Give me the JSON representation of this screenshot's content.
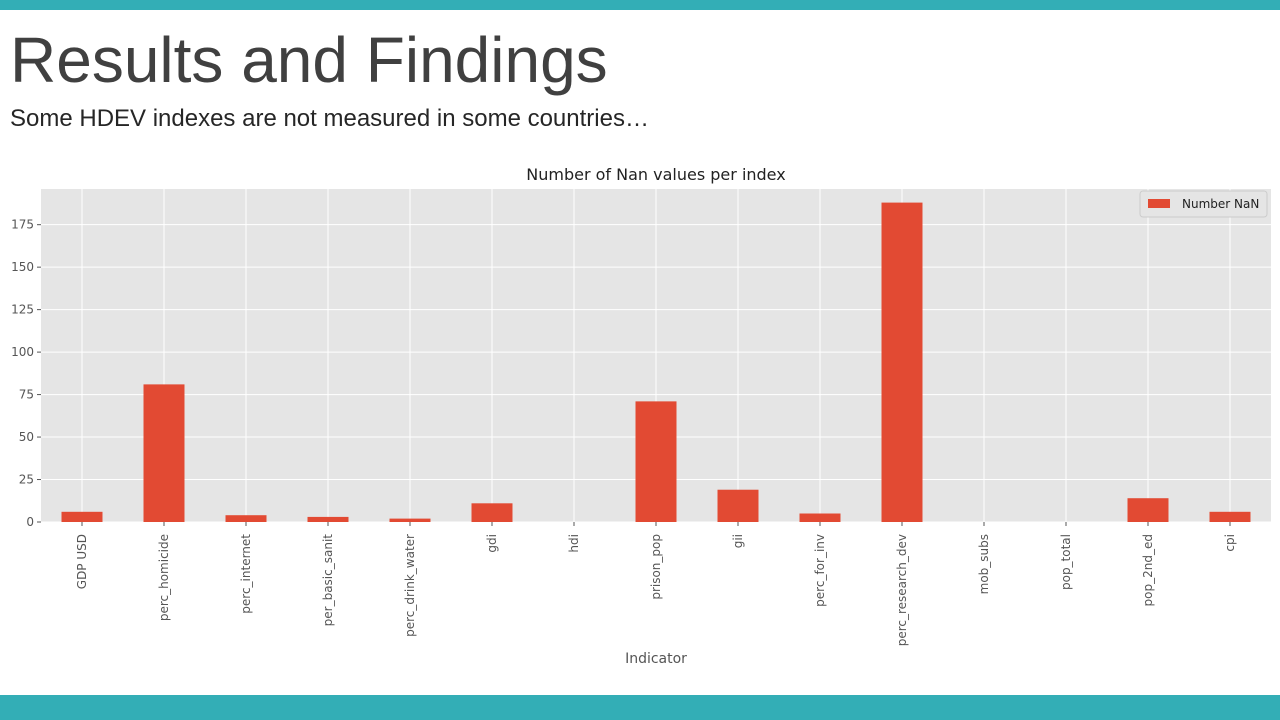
{
  "slide": {
    "title": "Results and Findings",
    "subtitle": "Some HDEV indexes are not measured in some countries…"
  },
  "colors": {
    "accent_bar": "#33aeb6",
    "bar": "#e24a33",
    "plot_background": "#e5e5e5",
    "grid": "#ffffff"
  },
  "chart_data": {
    "type": "bar",
    "title": "Number of Nan values per index",
    "xlabel": "Indicator",
    "ylabel": "",
    "categories": [
      "GDP USD",
      "perc_homicide",
      "perc_internet",
      "per_basic_sanit",
      "perc_drink_water",
      "gdi",
      "hdi",
      "prison_pop",
      "gii",
      "perc_for_inv",
      "perc_research_dev",
      "mob_subs",
      "pop_total",
      "pop_2nd_ed",
      "cpi"
    ],
    "series": [
      {
        "name": "Number NaN",
        "values": [
          6,
          81,
          4,
          3,
          2,
          11,
          0,
          71,
          19,
          5,
          188,
          0,
          0,
          14,
          6
        ]
      }
    ],
    "ylim": [
      0,
      196
    ],
    "yticks": [
      0,
      25,
      50,
      75,
      100,
      125,
      150,
      175
    ],
    "grid": true,
    "legend": "top-right"
  }
}
